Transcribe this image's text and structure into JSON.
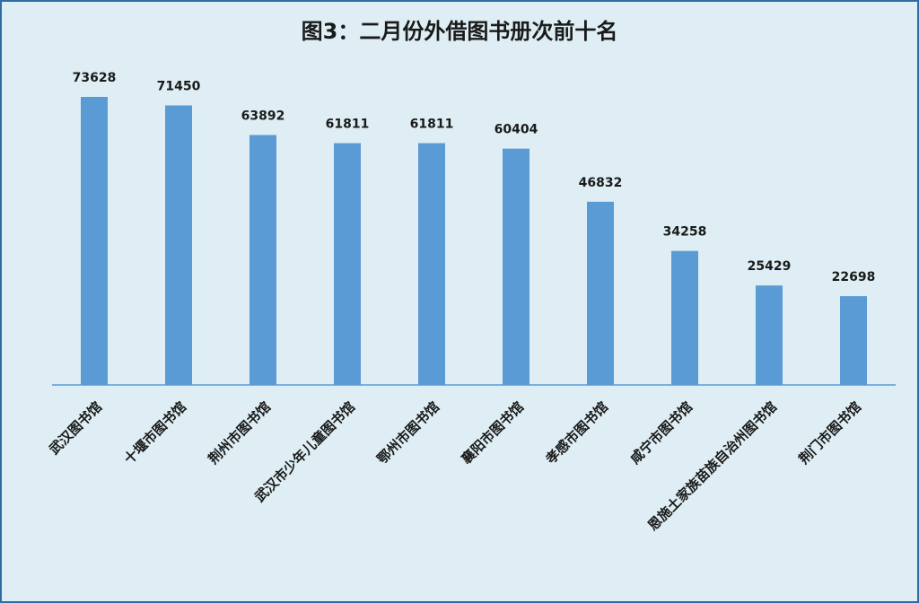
{
  "chart_data": {
    "type": "bar",
    "title": "图3：二月份外借图书册次前十名",
    "categories": [
      "武汉图书馆",
      "十堰市图书馆",
      "荆州市图书馆",
      "武汉市少年儿童图书馆",
      "鄂州市图书馆",
      "襄阳市图书馆",
      "孝感市图书馆",
      "咸宁市图书馆",
      "恩施土家族苗族自治州图书馆",
      "荆门市图书馆"
    ],
    "values": [
      73628,
      71450,
      63892,
      61811,
      61811,
      60404,
      46832,
      34258,
      25429,
      22698
    ],
    "color": "#5b9bd5"
  }
}
